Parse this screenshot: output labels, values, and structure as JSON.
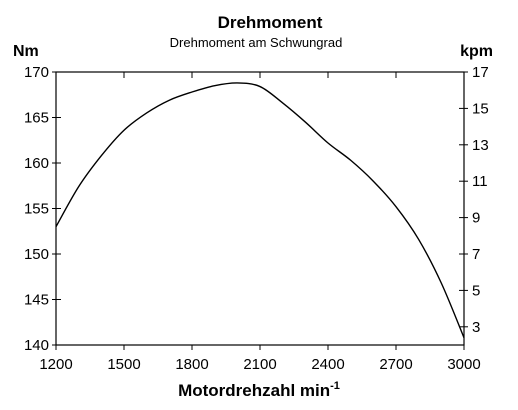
{
  "chart_data": {
    "type": "line",
    "title": "Drehmoment",
    "subtitle": "Drehmoment am Schwungrad",
    "xlabel": "Motordrehzahl min",
    "xlabel_sup": "-1",
    "ylabel_left": "Nm",
    "ylabel_right": "kpm",
    "xlim": [
      1200,
      3000
    ],
    "ylim": [
      140,
      170
    ],
    "ylim_right": [
      2,
      17
    ],
    "x_ticks": [
      1200,
      1500,
      1800,
      2100,
      2400,
      2700,
      3000
    ],
    "y_ticks": [
      140,
      145,
      150,
      155,
      160,
      165,
      170
    ],
    "y_ticks_right": [
      3,
      5,
      7,
      9,
      11,
      13,
      15,
      17
    ],
    "grid": false,
    "series": [
      {
        "x": [
          1200,
          1300,
          1400,
          1500,
          1600,
          1700,
          1800,
          1900,
          2000,
          2100,
          2200,
          2300,
          2400,
          2500,
          2600,
          2700,
          2800,
          2900,
          3000
        ],
        "values": [
          153.0,
          157.4,
          160.8,
          163.6,
          165.5,
          166.9,
          167.8,
          168.5,
          168.8,
          168.4,
          166.6,
          164.5,
          162.2,
          160.3,
          158.0,
          155.2,
          151.6,
          146.8,
          140.8
        ]
      }
    ],
    "line_color": "#000000"
  }
}
